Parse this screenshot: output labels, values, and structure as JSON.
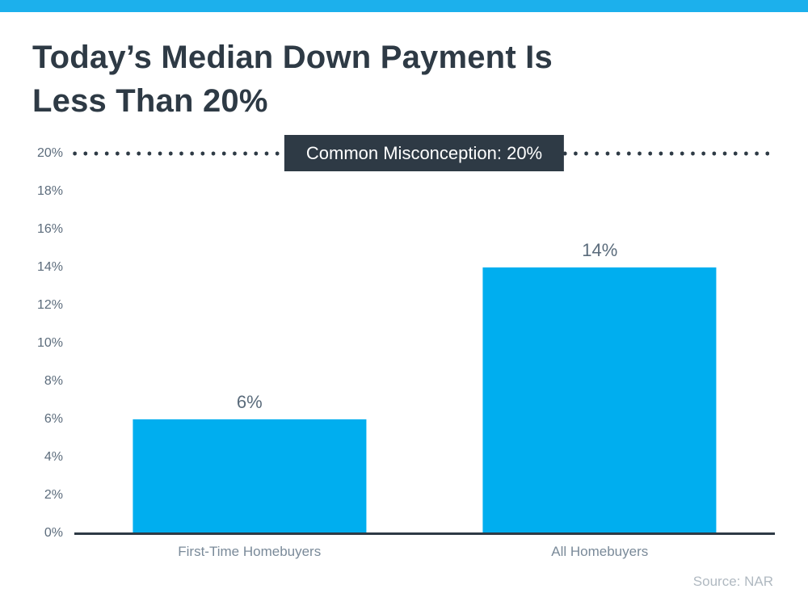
{
  "title": {
    "line1": "Today’s Median Down Payment Is",
    "line2": "Less Than 20%"
  },
  "source": "Source: NAR",
  "chart_data": {
    "type": "bar",
    "title": "Today’s Median Down Payment Is Less Than 20%",
    "categories": [
      "First-Time Homebuyers",
      "All Homebuyers"
    ],
    "values": [
      6,
      14
    ],
    "value_labels": [
      "6%",
      "14%"
    ],
    "xlabel": "",
    "ylabel": "",
    "ylim": [
      0,
      20
    ],
    "ytick_step": 2,
    "ytick_labels": [
      "0%",
      "2%",
      "4%",
      "6%",
      "8%",
      "10%",
      "12%",
      "14%",
      "16%",
      "18%",
      "20%"
    ],
    "grid": false,
    "legend": false,
    "bar_color": "#00AEEF",
    "annotation": {
      "label": "Common Misconception: 20%",
      "y": 20,
      "style": "dotted-line-with-dark-badge"
    }
  },
  "colors": {
    "accent_top_bar": "#1CB0EC",
    "bar": "#00AEEF",
    "dark": "#2E3A45",
    "axis_label": "#5C6C7C",
    "value_label": "#5A6B7B",
    "category_label": "#7A8A99",
    "source_text": "#B0B9C1",
    "badge_text": "#FFFFFF",
    "background": "#FFFFFF"
  }
}
